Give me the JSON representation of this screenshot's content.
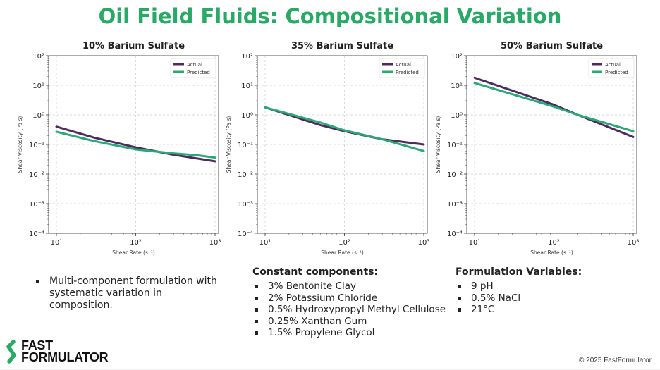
{
  "title": "Oil Field Fluids: Compositional Variation",
  "colors": {
    "title": "#2aa866",
    "actual": "#4e2a5e",
    "predicted": "#2aa876"
  },
  "chart_data": [
    {
      "type": "line",
      "title": "10% Barium Sulfate",
      "xlabel": "Shear Rate (s⁻¹)",
      "ylabel": "Shear Viscosity (Pa s)",
      "xscale": "log",
      "yscale": "log",
      "xlim": [
        10,
        1000
      ],
      "ylim": [
        0.0001,
        100
      ],
      "xticks": [
        "10¹",
        "10²",
        "10³"
      ],
      "yticks": [
        "10⁻⁴",
        "10⁻³",
        "10⁻²",
        "10⁻¹",
        "10⁰",
        "10¹",
        "10²"
      ],
      "grid": true,
      "legend": "top-right",
      "series": [
        {
          "name": "Actual",
          "x": [
            10,
            30,
            100,
            300,
            1000
          ],
          "y": [
            0.4,
            0.17,
            0.08,
            0.045,
            0.027
          ]
        },
        {
          "name": "Predicted",
          "x": [
            10,
            30,
            100,
            300,
            600,
            1000
          ],
          "y": [
            0.27,
            0.13,
            0.068,
            0.05,
            0.043,
            0.036
          ]
        }
      ]
    },
    {
      "type": "line",
      "title": "35% Barium Sulfate",
      "xlabel": "Shear Rate (s⁻¹)",
      "ylabel": "Shear Viscosity (Pa s)",
      "xscale": "log",
      "yscale": "log",
      "xlim": [
        10,
        1000
      ],
      "ylim": [
        0.0001,
        100
      ],
      "xticks": [
        "10¹",
        "10²",
        "10³"
      ],
      "yticks": [
        "10⁻⁴",
        "10⁻³",
        "10⁻²",
        "10⁻¹",
        "10⁰",
        "10¹",
        "10²"
      ],
      "grid": true,
      "legend": "top-right",
      "series": [
        {
          "name": "Actual",
          "x": [
            10,
            50,
            100,
            300,
            1000
          ],
          "y": [
            1.8,
            0.45,
            0.28,
            0.15,
            0.1
          ]
        },
        {
          "name": "Predicted",
          "x": [
            10,
            50,
            100,
            300,
            1000
          ],
          "y": [
            1.8,
            0.55,
            0.3,
            0.15,
            0.06
          ]
        }
      ]
    },
    {
      "type": "line",
      "title": "50% Barium Sulfate",
      "xlabel": "Shear Rate (s⁻¹)",
      "ylabel": "Shear Viscosity (Pa s)",
      "xscale": "log",
      "yscale": "log",
      "xlim": [
        10,
        1000
      ],
      "ylim": [
        0.0001,
        100
      ],
      "xticks": [
        "10¹",
        "10²",
        "10³"
      ],
      "yticks": [
        "10⁻⁴",
        "10⁻³",
        "10⁻²",
        "10⁻¹",
        "10⁰",
        "10¹",
        "10²"
      ],
      "grid": true,
      "legend": "top-right",
      "series": [
        {
          "name": "Actual",
          "x": [
            10,
            100,
            200,
            1000
          ],
          "y": [
            18,
            2.2,
            1.0,
            0.18
          ]
        },
        {
          "name": "Predicted",
          "x": [
            10,
            100,
            200,
            1000
          ],
          "y": [
            12,
            1.9,
            1.0,
            0.28
          ]
        }
      ]
    }
  ],
  "summary": {
    "items": [
      "Multi-component formulation with systematic variation in composition."
    ]
  },
  "constant": {
    "heading": "Constant components:",
    "items": [
      "3% Bentonite Clay",
      "2% Potassium Chloride",
      "0.5% Hydroxypropyl Methyl Cellulose",
      "0.25% Xanthan Gum",
      "1.5% Propylene Glycol"
    ]
  },
  "variables": {
    "heading": "Formulation Variables:",
    "items": [
      "9 pH",
      "0.5% NaCl",
      "21°C"
    ]
  },
  "logo": {
    "line1": "FAST",
    "line2": "FORMULATOR"
  },
  "copyright": "© 2025 FastFormulator"
}
